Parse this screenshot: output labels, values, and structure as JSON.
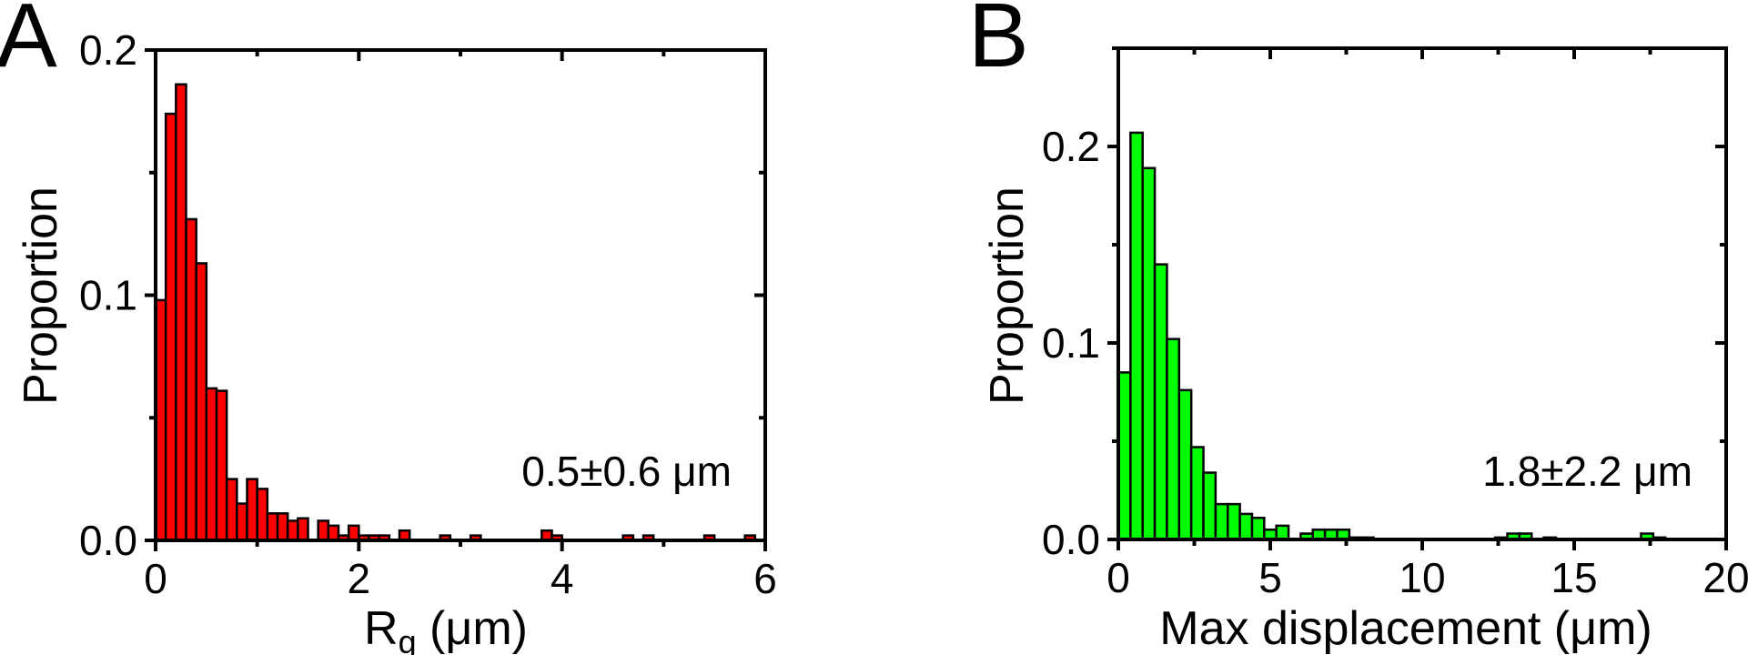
{
  "chart_data": [
    {
      "panel_label": "A",
      "type": "bar",
      "subtype": "histogram",
      "bar_color": "#ff0000",
      "edge_color": "#000000",
      "xlabel_main": "R",
      "xlabel_sub": "g",
      "xlabel_rest": " (μm)",
      "ylabel": "Proportion",
      "annotation": "0.5±0.6 μm",
      "xlim": [
        0,
        6
      ],
      "ylim": [
        0,
        0.2
      ],
      "xticks": [
        0,
        2,
        4,
        6
      ],
      "xtick_labels": [
        "0",
        "2",
        "4",
        "6"
      ],
      "x_minor_ticks": [
        1,
        3,
        5
      ],
      "yticks": [
        0,
        0.1,
        0.2
      ],
      "ytick_labels": [
        "0.0",
        "0.1",
        "0.2"
      ],
      "y_minor_ticks": [
        0.05,
        0.15
      ],
      "grid": false,
      "bin_start": 0,
      "bin_width": 0.1,
      "values": [
        0.098,
        0.174,
        0.186,
        0.131,
        0.113,
        0.062,
        0.061,
        0.025,
        0.015,
        0.025,
        0.021,
        0.011,
        0.011,
        0.008,
        0.009,
        0,
        0.008,
        0.006,
        0.002,
        0.006,
        0.002,
        0.002,
        0.002,
        0,
        0.004,
        0,
        0,
        0,
        0.002,
        0,
        0,
        0.002,
        0,
        0,
        0,
        0,
        0,
        0,
        0.004,
        0.002,
        0,
        0,
        0,
        0,
        0,
        0,
        0.002,
        0,
        0.002,
        0,
        0,
        0,
        0,
        0,
        0.002,
        0,
        0,
        0,
        0.002,
        0
      ]
    },
    {
      "panel_label": "B",
      "type": "bar",
      "subtype": "histogram",
      "bar_color": "#00ff00",
      "edge_color": "#000000",
      "xlabel_main": "Max displacement",
      "xlabel_sub": "",
      "xlabel_rest": " (μm)",
      "ylabel": "Proportion",
      "annotation": "1.8±2.2 μm",
      "xlim": [
        0,
        20
      ],
      "ylim": [
        0,
        0.25
      ],
      "xticks": [
        0,
        5,
        10,
        15,
        20
      ],
      "xtick_labels": [
        "0",
        "5",
        "10",
        "15",
        "20"
      ],
      "x_minor_ticks": [
        2.5,
        7.5,
        12.5,
        17.5
      ],
      "yticks": [
        0,
        0.1,
        0.2
      ],
      "ytick_labels": [
        "0.0",
        "0.1",
        "0.2"
      ],
      "y_minor_ticks": [
        0.05,
        0.15,
        0.25
      ],
      "grid": false,
      "bin_start": 0,
      "bin_width": 0.4,
      "values": [
        0.085,
        0.207,
        0.189,
        0.14,
        0.102,
        0.076,
        0.047,
        0.034,
        0.018,
        0.018,
        0.013,
        0.011,
        0.005,
        0.007,
        0,
        0.003,
        0.005,
        0.005,
        0.005,
        0.001,
        0.001,
        0,
        0,
        0,
        0,
        0,
        0,
        0,
        0,
        0,
        0,
        0.001,
        0.003,
        0.003,
        0,
        0.001,
        0,
        0,
        0,
        0,
        0,
        0,
        0,
        0.003,
        0.001,
        0,
        0,
        0,
        0,
        0
      ]
    }
  ]
}
